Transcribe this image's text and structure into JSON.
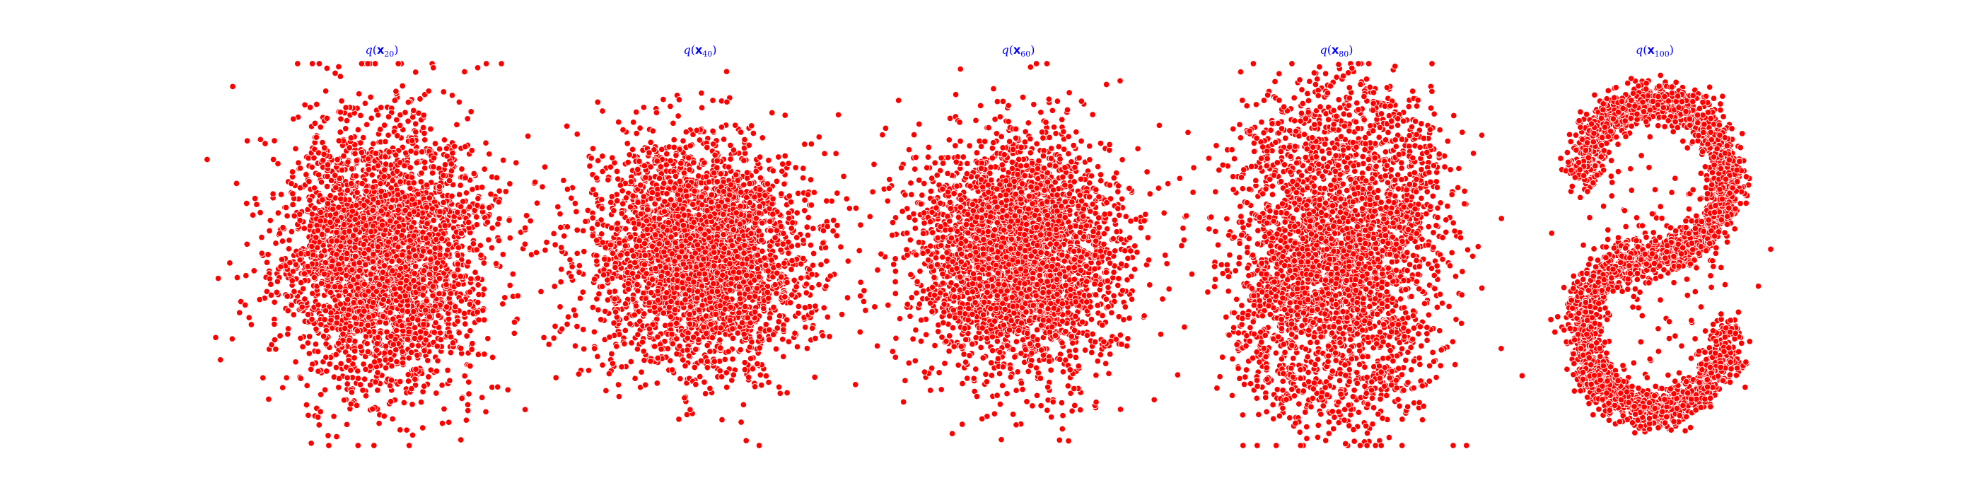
{
  "chart_data": [
    {
      "type": "scatter",
      "title": "q(x_20)",
      "title_parts": {
        "func": "q",
        "var": "x",
        "sub": "20"
      },
      "marker_color": "#ff0000",
      "edge_color": "#ffffff",
      "axes_visible": false,
      "xlim": [
        -3.5,
        3.5
      ],
      "ylim": [
        -3.6,
        3.6
      ],
      "distribution": "gaussian-blob",
      "series": [
        {
          "points": []
        }
      ]
    },
    {
      "type": "scatter",
      "title": "q(x_40)",
      "title_parts": {
        "func": "q",
        "var": "x",
        "sub": "40"
      },
      "marker_color": "#ff0000",
      "edge_color": "#ffffff",
      "axes_visible": false,
      "xlim": [
        -3.5,
        3.5
      ],
      "ylim": [
        -3.6,
        3.6
      ],
      "distribution": "gaussian-blob",
      "series": [
        {
          "points": []
        }
      ]
    },
    {
      "type": "scatter",
      "title": "q(x_60)",
      "title_parts": {
        "func": "q",
        "var": "x",
        "sub": "60"
      },
      "marker_color": "#ff0000",
      "edge_color": "#ffffff",
      "axes_visible": false,
      "xlim": [
        -3.5,
        3.5
      ],
      "ylim": [
        -3.6,
        3.6
      ],
      "distribution": "gaussian-blob",
      "series": [
        {
          "points": []
        }
      ]
    },
    {
      "type": "scatter",
      "title": "q(x_80)",
      "title_parts": {
        "func": "q",
        "var": "x",
        "sub": "80"
      },
      "marker_color": "#ff0000",
      "edge_color": "#ffffff",
      "axes_visible": false,
      "xlim": [
        -3.5,
        3.5
      ],
      "ylim": [
        -3.6,
        3.6
      ],
      "distribution": "emerging-s-curve",
      "series": [
        {
          "points": []
        }
      ]
    },
    {
      "type": "scatter",
      "title": "q(x_100)",
      "title_parts": {
        "func": "q",
        "var": "x",
        "sub": "100"
      },
      "marker_color": "#ff0000",
      "edge_color": "#ffffff",
      "axes_visible": false,
      "xlim": [
        -3.5,
        3.5
      ],
      "ylim": [
        -3.6,
        3.6
      ],
      "distribution": "s-curve",
      "series": [
        {
          "points": []
        }
      ]
    }
  ],
  "style": {
    "title_color": "#0000ff",
    "background": "#ffffff"
  }
}
